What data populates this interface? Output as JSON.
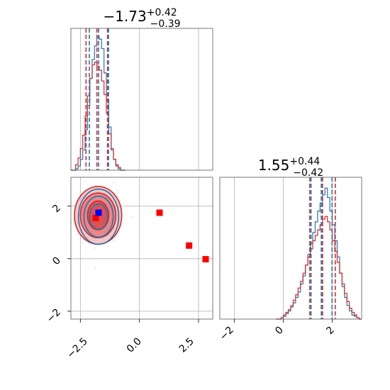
{
  "chart_data": [
    {
      "type": "histogram",
      "panel": "top-left",
      "title": {
        "value": "−1.73",
        "sup": "+0.42",
        "sub": "−0.39"
      },
      "xlim": [
        -2.9,
        3.1
      ],
      "grid": true,
      "blue_quantiles": [
        -2.12,
        -1.73,
        -1.31
      ],
      "red_quantiles": [
        -2.26,
        -1.8,
        -1.35
      ],
      "series": [
        {
          "color": "#1f77b4",
          "bins_x": [
            -2.9,
            -2.8,
            -2.7,
            -2.6,
            -2.5,
            -2.4,
            -2.3,
            -2.2,
            -2.1,
            -2.0,
            -1.9,
            -1.8,
            -1.7,
            -1.6,
            -1.5,
            -1.4,
            -1.3,
            -1.2,
            -1.1,
            -1.0,
            -0.9,
            -0.8,
            -0.7
          ],
          "values": [
            0,
            0,
            0.01,
            0.03,
            0.08,
            0.15,
            0.3,
            0.48,
            0.68,
            0.82,
            0.92,
            0.99,
            0.97,
            0.9,
            0.72,
            0.52,
            0.32,
            0.16,
            0.08,
            0.03,
            0.01,
            0,
            0
          ]
        },
        {
          "color": "#d62728",
          "bins_x": [
            -2.9,
            -2.8,
            -2.7,
            -2.6,
            -2.5,
            -2.4,
            -2.3,
            -2.2,
            -2.1,
            -2.0,
            -1.9,
            -1.8,
            -1.7,
            -1.6,
            -1.5,
            -1.4,
            -1.3,
            -1.2,
            -1.1,
            -1.0,
            -0.9,
            -0.8,
            -0.7
          ],
          "values": [
            0,
            0,
            0.04,
            0.09,
            0.16,
            0.26,
            0.4,
            0.55,
            0.68,
            0.78,
            0.8,
            0.77,
            0.74,
            0.66,
            0.56,
            0.42,
            0.27,
            0.15,
            0.08,
            0.04,
            0.02,
            0,
            0
          ]
        }
      ]
    },
    {
      "type": "scatter",
      "panel": "bottom-left",
      "xlim": [
        -2.9,
        3.1
      ],
      "ylim": [
        -2.3,
        3.1
      ],
      "x_ticks": [
        "−2.5",
        "0.0",
        "2.5"
      ],
      "x_tick_values": [
        -2.5,
        0.0,
        2.5
      ],
      "y_ticks": [
        "−2",
        "0",
        "2"
      ],
      "y_tick_values": [
        -2,
        0,
        2
      ],
      "grid": true,
      "blue_contours": [
        {
          "cx": -1.73,
          "cy": 1.6,
          "rx": 0.85,
          "ry": 1.05
        },
        {
          "cx": -1.73,
          "cy": 1.6,
          "rx": 0.62,
          "ry": 0.78
        },
        {
          "cx": -1.73,
          "cy": 1.6,
          "rx": 0.38,
          "ry": 0.48
        }
      ],
      "red_contours": [
        {
          "cx": -1.75,
          "cy": 1.65,
          "rx": 1.0,
          "ry": 1.1
        },
        {
          "cx": -1.75,
          "cy": 1.65,
          "rx": 0.75,
          "ry": 0.85
        },
        {
          "cx": -1.75,
          "cy": 1.65,
          "rx": 0.45,
          "ry": 0.55
        }
      ],
      "blue_marker": {
        "x": -1.73,
        "y": 1.75
      },
      "red_markers": [
        {
          "x": -1.85,
          "y": 1.55
        },
        {
          "x": 0.85,
          "y": 1.75
        },
        {
          "x": 2.1,
          "y": 0.5
        },
        {
          "x": 2.8,
          "y": -0.02
        }
      ]
    },
    {
      "type": "histogram",
      "panel": "bottom-right",
      "title": {
        "value": "1.55",
        "sup": "+0.44",
        "sub": "−0.42"
      },
      "xlim": [
        -2.6,
        3.2
      ],
      "x_ticks": [
        "−2",
        "0",
        "2"
      ],
      "x_tick_values": [
        -2,
        0,
        2
      ],
      "grid": true,
      "blue_quantiles": [
        1.13,
        1.55,
        1.99
      ],
      "red_quantiles": [
        1.08,
        1.6,
        2.12
      ],
      "series": [
        {
          "color": "#1f77b4",
          "bins_x": [
            -0.3,
            -0.2,
            -0.1,
            0.0,
            0.1,
            0.2,
            0.3,
            0.4,
            0.5,
            0.6,
            0.7,
            0.8,
            0.9,
            1.0,
            1.1,
            1.2,
            1.3,
            1.4,
            1.5,
            1.6,
            1.7,
            1.8,
            1.9,
            2.0,
            2.1,
            2.2,
            2.3,
            2.4,
            2.5,
            2.6,
            2.7,
            2.8,
            2.9,
            3.0,
            3.1
          ],
          "values": [
            0,
            0,
            0.01,
            0.02,
            0.04,
            0.06,
            0.09,
            0.12,
            0.16,
            0.2,
            0.26,
            0.32,
            0.4,
            0.48,
            0.56,
            0.64,
            0.72,
            0.8,
            0.86,
            0.92,
            0.97,
            0.9,
            0.8,
            0.7,
            0.58,
            0.46,
            0.34,
            0.24,
            0.16,
            0.1,
            0.06,
            0.03,
            0.02,
            0.01,
            0
          ]
        },
        {
          "color": "#d62728",
          "bins_x": [
            -0.3,
            -0.2,
            -0.1,
            0.0,
            0.1,
            0.2,
            0.3,
            0.4,
            0.5,
            0.6,
            0.7,
            0.8,
            0.9,
            1.0,
            1.1,
            1.2,
            1.3,
            1.4,
            1.5,
            1.6,
            1.7,
            1.8,
            1.9,
            2.0,
            2.1,
            2.2,
            2.3,
            2.4,
            2.5,
            2.6,
            2.7,
            2.8,
            2.9,
            3.0,
            3.1
          ],
          "values": [
            0,
            0,
            0.01,
            0.03,
            0.05,
            0.07,
            0.1,
            0.14,
            0.18,
            0.23,
            0.28,
            0.34,
            0.4,
            0.46,
            0.52,
            0.58,
            0.62,
            0.66,
            0.7,
            0.74,
            0.76,
            0.72,
            0.66,
            0.58,
            0.5,
            0.42,
            0.34,
            0.26,
            0.19,
            0.13,
            0.08,
            0.05,
            0.03,
            0.01,
            0
          ]
        }
      ]
    }
  ]
}
